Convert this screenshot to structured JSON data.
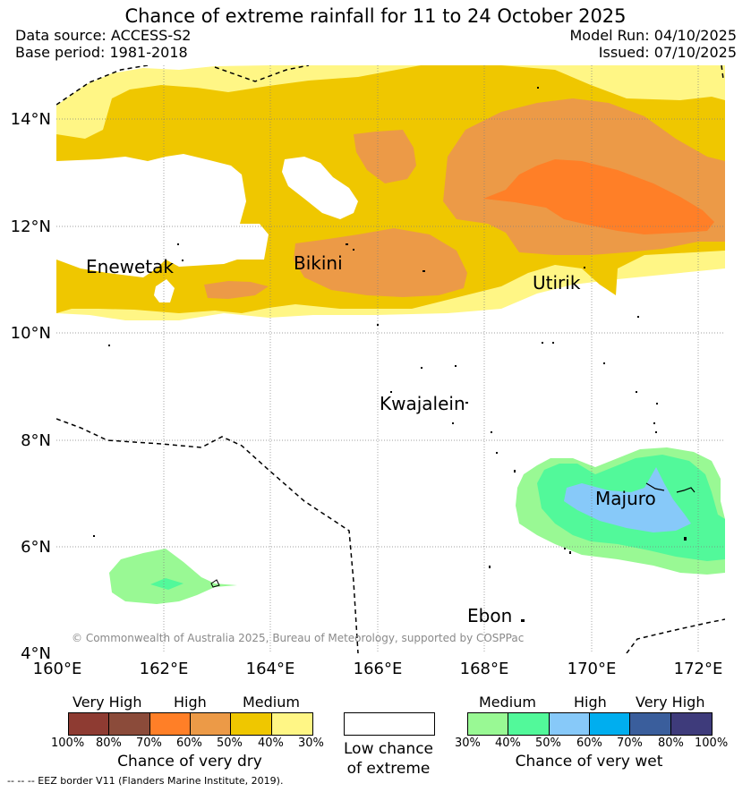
{
  "title": "Chance of extreme rainfall for 11 to 24 October 2025",
  "data_source": "Data source: ACCESS-S2",
  "base_period": "Base period: 1981-2018",
  "model_run": "Model Run: 04/10/2025",
  "issued": "Issued: 07/10/2025",
  "copyright": "© Commonwealth of Australia 2025, Bureau of Meteorology, supported by COSPPac",
  "lat_labels": [
    "14°N",
    "12°N",
    "10°N",
    "8°N",
    "6°N",
    "4°N"
  ],
  "lon_labels": [
    "160°E",
    "162°E",
    "164°E",
    "166°E",
    "168°E",
    "170°E",
    "172°E"
  ],
  "places": [
    "Enewetak",
    "Bikini",
    "Utirik",
    "Kwajalein",
    "Majuro",
    "Ebon"
  ],
  "dry_legend": {
    "headers": [
      "Very High",
      "High",
      "Medium"
    ],
    "colors": [
      "#8e3b32",
      "#8b4b3a",
      "#ff7f27",
      "#ec9a47",
      "#efc700",
      "#fff685"
    ],
    "ticks": [
      "100%",
      "80%",
      "70%",
      "60%",
      "50%",
      "40%",
      "30%"
    ],
    "label": "Chance of very dry"
  },
  "low_legend": {
    "label_line1": "Low chance",
    "label_line2": "of extreme"
  },
  "wet_legend": {
    "headers": [
      "Medium",
      "High",
      "Very High"
    ],
    "colors": [
      "#99f994",
      "#52f99a",
      "#87c9f9",
      "#00aeef",
      "#3a5e9c",
      "#3e3b7b"
    ],
    "ticks": [
      "30%",
      "40%",
      "50%",
      "60%",
      "70%",
      "80%",
      "100%"
    ],
    "label": "Chance of very wet"
  },
  "footnote": "--  --  -- EEZ border V11 (Flanders Marine Institute, 2019)."
}
